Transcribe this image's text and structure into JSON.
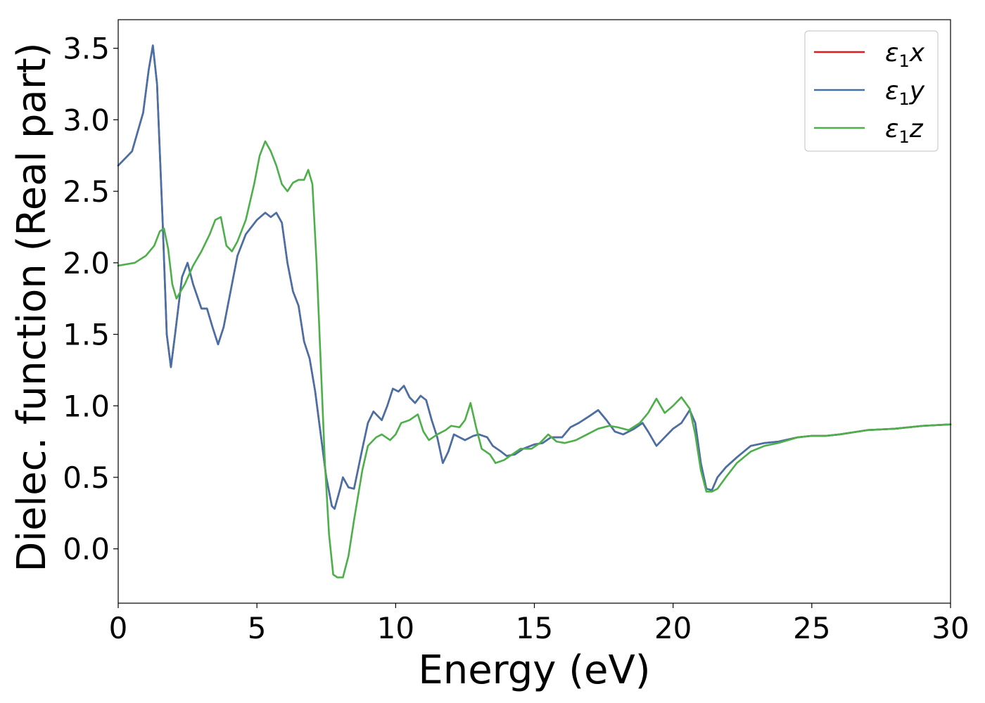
{
  "chart_data": {
    "type": "line",
    "title": "",
    "xlabel": "Energy (eV)",
    "ylabel": "Dielec. function (Real part)",
    "xlim": [
      0,
      30
    ],
    "ylim": [
      -0.38,
      3.7
    ],
    "xticks": [
      "0",
      "5",
      "10",
      "15",
      "20",
      "25",
      "30"
    ],
    "yticks": [
      "0.0",
      "0.5",
      "1.0",
      "1.5",
      "2.0",
      "2.5",
      "3.0",
      "3.5"
    ],
    "grid": false,
    "legend_position": "top-right",
    "series": [
      {
        "name": "ε1x",
        "legend_base": "ε",
        "legend_sub": "1",
        "legend_var": "x",
        "color": "#e41a1c",
        "x": [
          0,
          0.5,
          0.9,
          1.1,
          1.25,
          1.4,
          1.6,
          1.75,
          1.9,
          2.05,
          2.3,
          2.5,
          2.7,
          3.0,
          3.2,
          3.4,
          3.6,
          3.8,
          4.0,
          4.3,
          4.6,
          5.0,
          5.3,
          5.5,
          5.7,
          5.9,
          6.1,
          6.3,
          6.5,
          6.7,
          6.9,
          7.1,
          7.3,
          7.5,
          7.7,
          7.8,
          8.0,
          8.1,
          8.3,
          8.5,
          8.8,
          9.0,
          9.2,
          9.5,
          9.7,
          9.9,
          10.1,
          10.3,
          10.5,
          10.7,
          10.9,
          11.1,
          11.3,
          11.5,
          11.7,
          11.9,
          12.1,
          12.3,
          12.5,
          12.8,
          13.0,
          13.3,
          13.5,
          13.8,
          14.0,
          14.3,
          14.6,
          15.0,
          15.3,
          15.6,
          16.0,
          16.3,
          16.6,
          17.0,
          17.3,
          17.6,
          17.9,
          18.2,
          18.6,
          18.9,
          19.1,
          19.4,
          19.7,
          20.0,
          20.3,
          20.6,
          20.8,
          21.0,
          21.2,
          21.4,
          21.6,
          21.9,
          22.3,
          22.8,
          23.3,
          23.8,
          24.5,
          25.0,
          25.5,
          26.0,
          27.0,
          28.0,
          29.0,
          30.0
        ],
        "y": [
          2.68,
          2.78,
          3.05,
          3.35,
          3.52,
          3.25,
          2.3,
          1.5,
          1.27,
          1.5,
          1.9,
          2.0,
          1.85,
          1.68,
          1.68,
          1.55,
          1.43,
          1.55,
          1.75,
          2.05,
          2.2,
          2.3,
          2.35,
          2.32,
          2.35,
          2.28,
          2.0,
          1.8,
          1.7,
          1.45,
          1.33,
          1.1,
          0.8,
          0.5,
          0.3,
          0.28,
          0.42,
          0.5,
          0.43,
          0.42,
          0.7,
          0.88,
          0.96,
          0.9,
          1.0,
          1.12,
          1.1,
          1.14,
          1.06,
          1.02,
          1.07,
          1.04,
          0.9,
          0.78,
          0.6,
          0.68,
          0.8,
          0.78,
          0.76,
          0.79,
          0.8,
          0.78,
          0.72,
          0.68,
          0.65,
          0.66,
          0.7,
          0.73,
          0.74,
          0.78,
          0.78,
          0.85,
          0.88,
          0.93,
          0.97,
          0.9,
          0.82,
          0.8,
          0.84,
          0.88,
          0.82,
          0.72,
          0.78,
          0.84,
          0.88,
          0.97,
          0.88,
          0.6,
          0.42,
          0.41,
          0.5,
          0.57,
          0.64,
          0.72,
          0.74,
          0.75,
          0.78,
          0.79,
          0.79,
          0.8,
          0.83,
          0.84,
          0.86,
          0.87
        ]
      },
      {
        "name": "ε1y",
        "legend_base": "ε",
        "legend_sub": "1",
        "legend_var": "y",
        "color": "#4472a8",
        "x": [
          0,
          0.5,
          0.9,
          1.1,
          1.25,
          1.4,
          1.6,
          1.75,
          1.9,
          2.05,
          2.3,
          2.5,
          2.7,
          3.0,
          3.2,
          3.4,
          3.6,
          3.8,
          4.0,
          4.3,
          4.6,
          5.0,
          5.3,
          5.5,
          5.7,
          5.9,
          6.1,
          6.3,
          6.5,
          6.7,
          6.9,
          7.1,
          7.3,
          7.5,
          7.7,
          7.8,
          8.0,
          8.1,
          8.3,
          8.5,
          8.8,
          9.0,
          9.2,
          9.5,
          9.7,
          9.9,
          10.1,
          10.3,
          10.5,
          10.7,
          10.9,
          11.1,
          11.3,
          11.5,
          11.7,
          11.9,
          12.1,
          12.3,
          12.5,
          12.8,
          13.0,
          13.3,
          13.5,
          13.8,
          14.0,
          14.3,
          14.6,
          15.0,
          15.3,
          15.6,
          16.0,
          16.3,
          16.6,
          17.0,
          17.3,
          17.6,
          17.9,
          18.2,
          18.6,
          18.9,
          19.1,
          19.4,
          19.7,
          20.0,
          20.3,
          20.6,
          20.8,
          21.0,
          21.2,
          21.4,
          21.6,
          21.9,
          22.3,
          22.8,
          23.3,
          23.8,
          24.5,
          25.0,
          25.5,
          26.0,
          27.0,
          28.0,
          29.0,
          30.0
        ],
        "y": [
          2.68,
          2.78,
          3.05,
          3.35,
          3.52,
          3.25,
          2.3,
          1.5,
          1.27,
          1.5,
          1.9,
          2.0,
          1.85,
          1.68,
          1.68,
          1.55,
          1.43,
          1.55,
          1.75,
          2.05,
          2.2,
          2.3,
          2.35,
          2.32,
          2.35,
          2.28,
          2.0,
          1.8,
          1.7,
          1.45,
          1.33,
          1.1,
          0.8,
          0.5,
          0.3,
          0.28,
          0.42,
          0.5,
          0.43,
          0.42,
          0.7,
          0.88,
          0.96,
          0.9,
          1.0,
          1.12,
          1.1,
          1.14,
          1.06,
          1.02,
          1.07,
          1.04,
          0.9,
          0.78,
          0.6,
          0.68,
          0.8,
          0.78,
          0.76,
          0.79,
          0.8,
          0.78,
          0.72,
          0.68,
          0.65,
          0.66,
          0.7,
          0.73,
          0.74,
          0.78,
          0.78,
          0.85,
          0.88,
          0.93,
          0.97,
          0.9,
          0.82,
          0.8,
          0.84,
          0.88,
          0.82,
          0.72,
          0.78,
          0.84,
          0.88,
          0.97,
          0.88,
          0.6,
          0.42,
          0.41,
          0.5,
          0.57,
          0.64,
          0.72,
          0.74,
          0.75,
          0.78,
          0.79,
          0.79,
          0.8,
          0.83,
          0.84,
          0.86,
          0.87
        ]
      },
      {
        "name": "ε1z",
        "legend_base": "ε",
        "legend_sub": "1",
        "legend_var": "z",
        "color": "#4daf4a",
        "x": [
          0,
          0.6,
          1.0,
          1.3,
          1.5,
          1.65,
          1.8,
          1.95,
          2.1,
          2.4,
          2.7,
          3.0,
          3.3,
          3.5,
          3.7,
          3.9,
          4.1,
          4.3,
          4.6,
          4.9,
          5.1,
          5.3,
          5.5,
          5.7,
          5.9,
          6.1,
          6.3,
          6.5,
          6.7,
          6.85,
          7.0,
          7.15,
          7.3,
          7.45,
          7.6,
          7.75,
          7.9,
          8.1,
          8.3,
          8.5,
          8.8,
          9.0,
          9.3,
          9.5,
          9.8,
          10.0,
          10.2,
          10.5,
          10.8,
          11.0,
          11.2,
          11.5,
          11.8,
          12.0,
          12.3,
          12.5,
          12.7,
          12.9,
          13.1,
          13.4,
          13.6,
          13.9,
          14.2,
          14.5,
          14.9,
          15.2,
          15.5,
          15.8,
          16.1,
          16.5,
          16.9,
          17.3,
          17.7,
          18.0,
          18.4,
          18.8,
          19.1,
          19.4,
          19.7,
          20.0,
          20.3,
          20.6,
          20.8,
          21.0,
          21.2,
          21.4,
          21.6,
          21.9,
          22.3,
          22.8,
          23.3,
          23.8,
          24.5,
          25.0,
          25.5,
          26.0,
          27.0,
          28.0,
          29.0,
          30.0
        ],
        "y": [
          1.98,
          2.0,
          2.05,
          2.12,
          2.22,
          2.24,
          2.1,
          1.85,
          1.75,
          1.85,
          1.98,
          2.08,
          2.2,
          2.3,
          2.32,
          2.12,
          2.08,
          2.15,
          2.3,
          2.55,
          2.75,
          2.85,
          2.78,
          2.68,
          2.55,
          2.5,
          2.56,
          2.58,
          2.58,
          2.65,
          2.55,
          2.0,
          1.3,
          0.6,
          0.1,
          -0.18,
          -0.2,
          -0.2,
          -0.05,
          0.2,
          0.55,
          0.72,
          0.78,
          0.8,
          0.76,
          0.8,
          0.88,
          0.9,
          0.94,
          0.82,
          0.76,
          0.8,
          0.83,
          0.86,
          0.85,
          0.9,
          1.02,
          0.85,
          0.7,
          0.66,
          0.6,
          0.62,
          0.66,
          0.7,
          0.7,
          0.74,
          0.8,
          0.75,
          0.74,
          0.76,
          0.8,
          0.84,
          0.86,
          0.85,
          0.83,
          0.88,
          0.95,
          1.05,
          0.95,
          1.0,
          1.06,
          0.98,
          0.8,
          0.55,
          0.4,
          0.4,
          0.42,
          0.5,
          0.6,
          0.68,
          0.72,
          0.74,
          0.78,
          0.79,
          0.79,
          0.8,
          0.83,
          0.84,
          0.86,
          0.87
        ]
      }
    ]
  }
}
